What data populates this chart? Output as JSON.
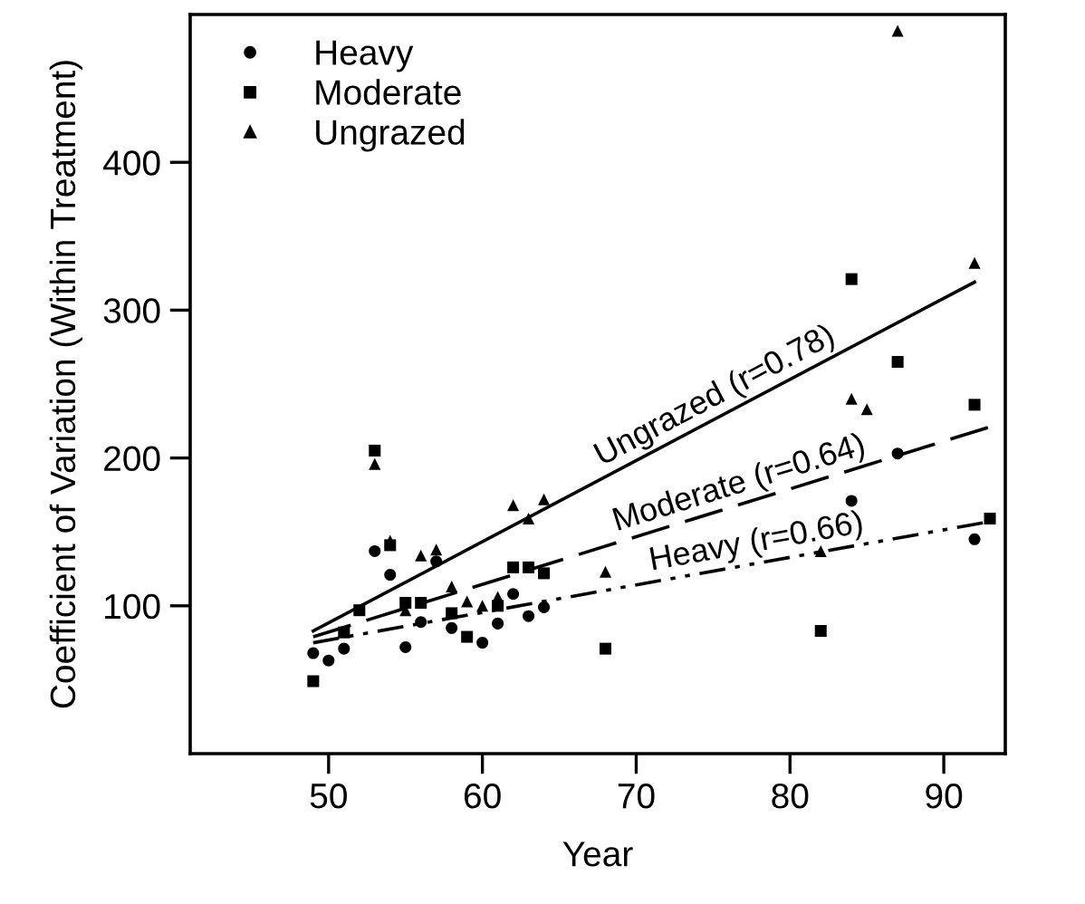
{
  "chart_data": {
    "type": "scatter",
    "xlabel": "Year",
    "ylabel": "Coefficient of Variation (Within Treatment)",
    "xlim": [
      41,
      94
    ],
    "ylim": [
      0,
      500
    ],
    "xticks": [
      50,
      60,
      70,
      80,
      90
    ],
    "yticks": [
      100,
      200,
      300,
      400
    ],
    "grid": false,
    "legend": "top left",
    "series": [
      {
        "name": "Heavy",
        "marker": "circle",
        "color": "#000000",
        "x": [
          49,
          50,
          51,
          53,
          54,
          55,
          56,
          57,
          58,
          60,
          61,
          62,
          63,
          64,
          84,
          87,
          92
        ],
        "values": [
          68,
          63,
          71,
          137,
          121,
          72,
          89,
          130,
          85,
          75,
          88,
          108,
          93,
          99,
          171,
          203,
          145
        ]
      },
      {
        "name": "Moderate",
        "marker": "square",
        "color": "#000000",
        "x": [
          49,
          51,
          52,
          53,
          54,
          55,
          56,
          58,
          59,
          61,
          62,
          63,
          64,
          68,
          82,
          84,
          87,
          92,
          93
        ],
        "values": [
          49,
          82,
          97,
          205,
          141,
          102,
          102,
          95,
          79,
          100,
          126,
          126,
          122,
          71,
          83,
          321,
          265,
          236,
          159
        ]
      },
      {
        "name": "Ungrazed",
        "marker": "triangle",
        "color": "#000000",
        "x": [
          53,
          54,
          55,
          56,
          57,
          58,
          59,
          60,
          61,
          62,
          63,
          64,
          68,
          82,
          84,
          85,
          87,
          92
        ],
        "values": [
          196,
          144,
          97,
          134,
          138,
          113,
          103,
          100,
          106,
          168,
          159,
          172,
          123,
          137,
          240,
          233,
          489,
          332
        ]
      },
      {
        "type": "line",
        "line_style": "solid",
        "marker": "none",
        "color": "#000000",
        "x": [
          49,
          92
        ],
        "values": [
          83,
          319
        ]
      },
      {
        "type": "line",
        "line_style": "dashed",
        "marker": "none",
        "color": "#000000",
        "x": [
          49,
          93
        ],
        "values": [
          79,
          221
        ]
      },
      {
        "type": "line",
        "line_style": "dotted",
        "marker": "none",
        "color": "#000000",
        "x": [
          49,
          93
        ],
        "values": [
          75,
          157
        ]
      }
    ],
    "annotations": [
      {
        "text": "Ungrazed (r=0.78)",
        "x": 75.6,
        "y": 229
      },
      {
        "text": "Moderate (r=0.64)",
        "x": 77,
        "y": 169
      },
      {
        "text": "Heavy (r=0.66)",
        "x": 78,
        "y": 129
      }
    ]
  }
}
